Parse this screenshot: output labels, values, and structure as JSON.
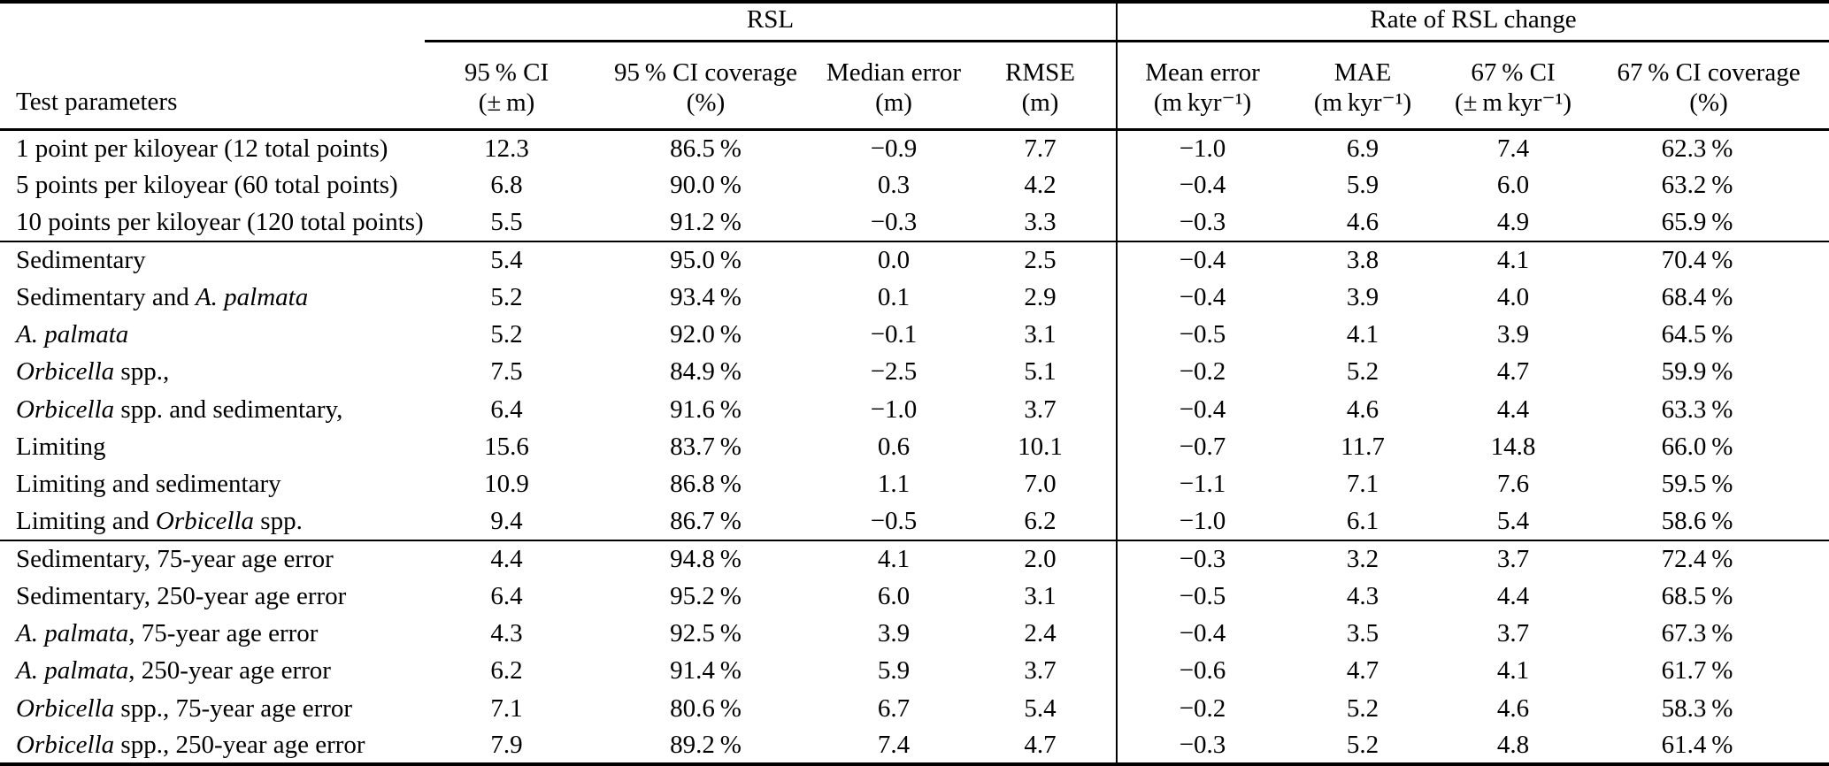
{
  "table": {
    "span_headers": {
      "rsl": "RSL",
      "rate": "Rate of RSL change"
    },
    "row_header": "Test parameters",
    "columns": [
      {
        "name": "95 % CI",
        "unit": "(± m)"
      },
      {
        "name": "95 % CI coverage",
        "unit": "(%)"
      },
      {
        "name": "Median error",
        "unit": "(m)"
      },
      {
        "name": "RMSE",
        "unit": "(m)"
      },
      {
        "name": "Mean error",
        "unit": "(m kyr⁻¹)"
      },
      {
        "name": "MAE",
        "unit": "(m kyr⁻¹)"
      },
      {
        "name": "67 % CI",
        "unit": "(± m kyr⁻¹)"
      },
      {
        "name": "67 % CI coverage",
        "unit": "(%)"
      }
    ],
    "groups": [
      {
        "rows": [
          {
            "label": [
              "1 point per kiloyear (12 total points)"
            ],
            "values": [
              "12.3",
              "86.5 %",
              "−0.9",
              "7.7",
              "−1.0",
              "6.9",
              "7.4",
              "62.3 %"
            ]
          },
          {
            "label": [
              "5 points per kiloyear (60 total points)"
            ],
            "values": [
              "6.8",
              "90.0 %",
              "0.3",
              "4.2",
              "−0.4",
              "5.9",
              "6.0",
              "63.2 %"
            ]
          },
          {
            "label": [
              "10 points per kiloyear (120 total points)"
            ],
            "values": [
              "5.5",
              "91.2 %",
              "−0.3",
              "3.3",
              "−0.3",
              "4.6",
              "4.9",
              "65.9 %"
            ]
          }
        ]
      },
      {
        "rows": [
          {
            "label": [
              "Sedimentary"
            ],
            "values": [
              "5.4",
              "95.0 %",
              "0.0",
              "2.5",
              "−0.4",
              "3.8",
              "4.1",
              "70.4 %"
            ]
          },
          {
            "label": [
              "Sedimentary and ",
              {
                "i": "A. palmata"
              }
            ],
            "values": [
              "5.2",
              "93.4 %",
              "0.1",
              "2.9",
              "−0.4",
              "3.9",
              "4.0",
              "68.4 %"
            ]
          },
          {
            "label": [
              {
                "i": "A. palmata"
              }
            ],
            "values": [
              "5.2",
              "92.0 %",
              "−0.1",
              "3.1",
              "−0.5",
              "4.1",
              "3.9",
              "64.5 %"
            ]
          },
          {
            "label": [
              {
                "i": "Orbicella"
              },
              " spp.,"
            ],
            "values": [
              "7.5",
              "84.9 %",
              "−2.5",
              "5.1",
              "−0.2",
              "5.2",
              "4.7",
              "59.9 %"
            ]
          },
          {
            "label": [
              {
                "i": "Orbicella"
              },
              " spp. and sedimentary,"
            ],
            "values": [
              "6.4",
              "91.6 %",
              "−1.0",
              "3.7",
              "−0.4",
              "4.6",
              "4.4",
              "63.3 %"
            ]
          },
          {
            "label": [
              "Limiting"
            ],
            "values": [
              "15.6",
              "83.7 %",
              "0.6",
              "10.1",
              "−0.7",
              "11.7",
              "14.8",
              "66.0 %"
            ]
          },
          {
            "label": [
              "Limiting and sedimentary"
            ],
            "values": [
              "10.9",
              "86.8 %",
              "1.1",
              "7.0",
              "−1.1",
              "7.1",
              "7.6",
              "59.5 %"
            ]
          },
          {
            "label": [
              "Limiting and ",
              {
                "i": "Orbicella"
              },
              " spp."
            ],
            "values": [
              "9.4",
              "86.7 %",
              "−0.5",
              "6.2",
              "−1.0",
              "6.1",
              "5.4",
              "58.6 %"
            ]
          }
        ]
      },
      {
        "rows": [
          {
            "label": [
              "Sedimentary, 75-year age error"
            ],
            "values": [
              "4.4",
              "94.8 %",
              "4.1",
              "2.0",
              "−0.3",
              "3.2",
              "3.7",
              "72.4 %"
            ]
          },
          {
            "label": [
              "Sedimentary, 250-year age error"
            ],
            "values": [
              "6.4",
              "95.2 %",
              "6.0",
              "3.1",
              "−0.5",
              "4.3",
              "4.4",
              "68.5 %"
            ]
          },
          {
            "label": [
              {
                "i": "A. palmata"
              },
              ", 75-year age error"
            ],
            "values": [
              "4.3",
              "92.5 %",
              "3.9",
              "2.4",
              "−0.4",
              "3.5",
              "3.7",
              "67.3 %"
            ]
          },
          {
            "label": [
              {
                "i": "A. palmata"
              },
              ", 250-year age error"
            ],
            "values": [
              "6.2",
              "91.4 %",
              "5.9",
              "3.7",
              "−0.6",
              "4.7",
              "4.1",
              "61.7 %"
            ]
          },
          {
            "label": [
              {
                "i": "Orbicella"
              },
              " spp., 75-year age error"
            ],
            "values": [
              "7.1",
              "80.6 %",
              "6.7",
              "5.4",
              "−0.2",
              "5.2",
              "4.6",
              "58.3 %"
            ]
          },
          {
            "label": [
              {
                "i": "Orbicella"
              },
              " spp., 250-year age error"
            ],
            "values": [
              "7.9",
              "89.2 %",
              "7.4",
              "4.7",
              "−0.3",
              "5.2",
              "4.8",
              "61.4 %"
            ]
          }
        ]
      }
    ]
  }
}
